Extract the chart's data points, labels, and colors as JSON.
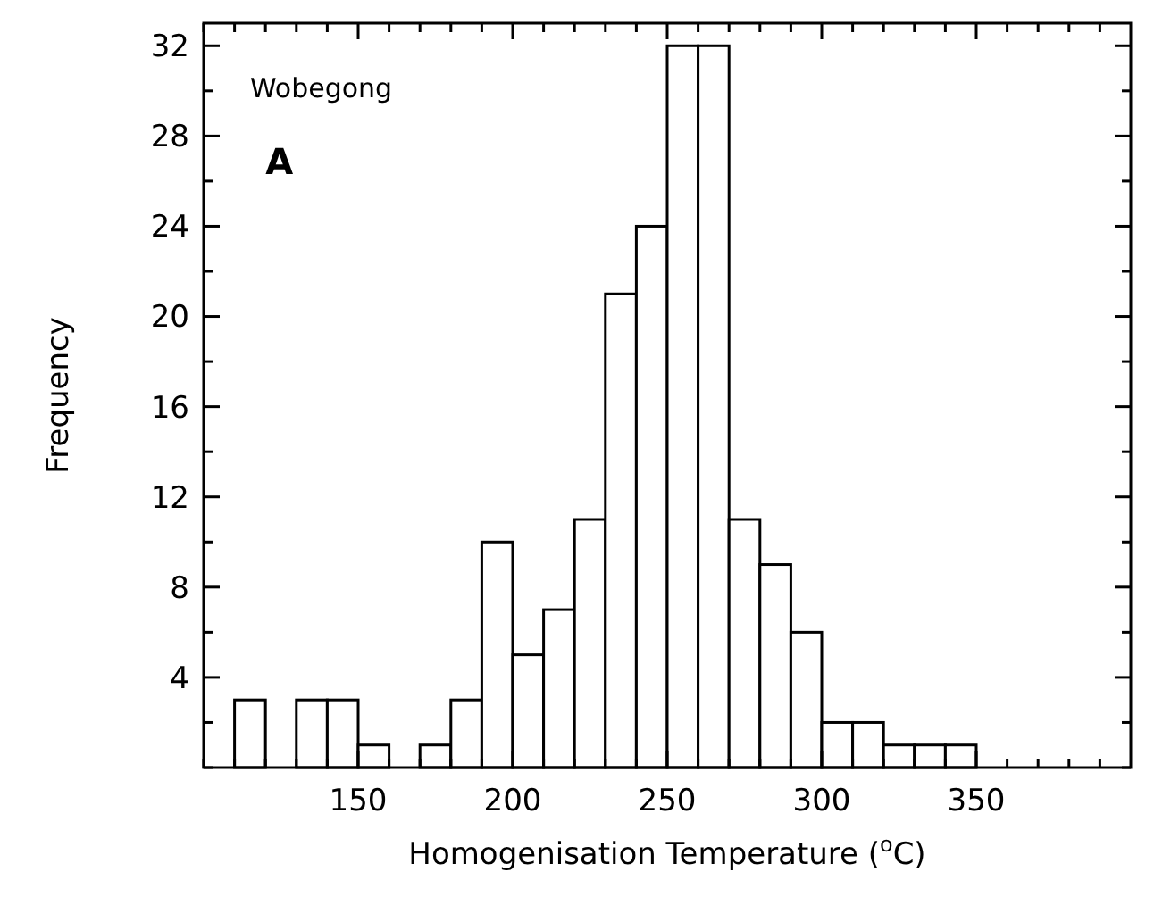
{
  "chart_data": {
    "type": "histogram",
    "xlabel": "Homogenisation Temperature ($^{o}$C)",
    "ylabel": "Frequency",
    "bins": [
      110,
      120,
      130,
      140,
      150,
      160,
      170,
      180,
      190,
      200,
      210,
      220,
      230,
      240,
      250,
      260,
      270,
      280,
      290,
      300,
      310,
      320,
      330,
      340,
      350
    ],
    "values": [
      3,
      0,
      3,
      3,
      1,
      0,
      1,
      3,
      10,
      5,
      7,
      11,
      21,
      24,
      32,
      32,
      11,
      9,
      6,
      2,
      2,
      1,
      1,
      1
    ],
    "color": "#ffffff",
    "xlim": [
      100,
      400
    ],
    "xticks": [
      {
        "value": 100,
        "label": null
      },
      {
        "value": 110,
        "label": null
      },
      {
        "value": 120,
        "label": null
      },
      {
        "value": 130,
        "label": null
      },
      {
        "value": 140,
        "label": null
      },
      150,
      {
        "value": 160,
        "label": null
      },
      {
        "value": 170,
        "label": null
      },
      {
        "value": 180,
        "label": null
      },
      {
        "value": 190,
        "label": null
      },
      200,
      {
        "value": 210,
        "label": null
      },
      {
        "value": 220,
        "label": null
      },
      {
        "value": 230,
        "label": null
      },
      {
        "value": 240,
        "label": null
      },
      250,
      {
        "value": 260,
        "label": null
      },
      {
        "value": 270,
        "label": null
      },
      {
        "value": 280,
        "label": null
      },
      {
        "value": 290,
        "label": null
      },
      300,
      {
        "value": 310,
        "label": null
      },
      {
        "value": 320,
        "label": null
      },
      {
        "value": 330,
        "label": null
      },
      {
        "value": 340,
        "label": null
      },
      350,
      {
        "value": 360,
        "label": null
      },
      {
        "value": 370,
        "label": null
      },
      {
        "value": 380,
        "label": null
      },
      {
        "value": 390,
        "label": null
      }
    ],
    "ylim": [
      0,
      33
    ],
    "yticks": [
      {
        "value": 0,
        "label": null
      },
      {
        "value": 2,
        "label": null
      },
      4,
      {
        "value": 6,
        "label": null
      },
      8,
      {
        "value": 10,
        "label": null
      },
      12,
      {
        "value": 14,
        "label": null
      },
      16,
      {
        "value": 18,
        "label": null
      },
      20,
      {
        "value": 22,
        "label": null
      },
      24,
      {
        "value": 26,
        "label": null
      },
      28,
      {
        "value": 30,
        "label": null
      },
      32
    ],
    "grid": false,
    "annotations": [
      "Wobegong",
      "A"
    ]
  }
}
